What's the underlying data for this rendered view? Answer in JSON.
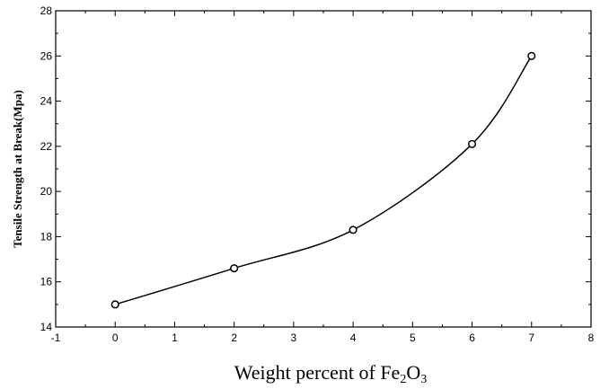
{
  "chart_data": {
    "type": "scatter",
    "title": "",
    "xlabel": {
      "main": "Weight percent of Fe",
      "sub1": "2",
      "mid": "O",
      "sub2": "3"
    },
    "ylabel": "Tensile Strength at Break(Mpa)",
    "xlim": [
      -1,
      8
    ],
    "ylim": [
      14,
      28
    ],
    "xticks": [
      "-1",
      "0",
      "1",
      "2",
      "3",
      "4",
      "5",
      "6",
      "7",
      "8"
    ],
    "yticks": [
      "14",
      "16",
      "18",
      "20",
      "22",
      "24",
      "26",
      "28"
    ],
    "series": [
      {
        "points": [
          {
            "x": 0,
            "y": 15.0
          },
          {
            "x": 2,
            "y": 16.6
          },
          {
            "x": 4,
            "y": 18.3
          },
          {
            "x": 6,
            "y": 22.1
          },
          {
            "x": 7,
            "y": 26.0
          }
        ],
        "marker": "open-circle",
        "fit_curve": true
      }
    ],
    "grid": false
  }
}
